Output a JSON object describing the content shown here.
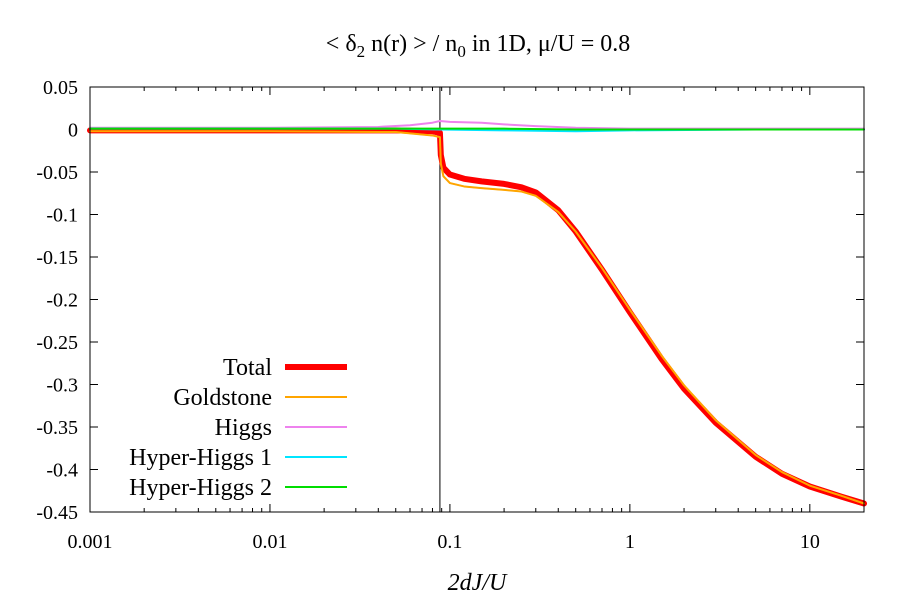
{
  "chart_data": {
    "type": "line",
    "title": {
      "prefix": "< ",
      "delta": "δ",
      "delta_sub": "2",
      "mid": " n(r) > / n",
      "n_sub": "0",
      "suffix": " in 1D, ",
      "mu": "μ",
      "ratio": "/U = 0.8"
    },
    "xlabel": "2dJ/U",
    "ylabel": "",
    "xscale": "log",
    "xlim": [
      0.001,
      20
    ],
    "ylim": [
      -0.45,
      0.05
    ],
    "xticks": [
      {
        "value": 0.001,
        "label": "0.001"
      },
      {
        "value": 0.01,
        "label": "0.01"
      },
      {
        "value": 0.1,
        "label": "0.1"
      },
      {
        "value": 1,
        "label": "1"
      },
      {
        "value": 10,
        "label": "10"
      }
    ],
    "yticks": [
      {
        "value": 0.05,
        "label": "0.05"
      },
      {
        "value": 0,
        "label": "0"
      },
      {
        "value": -0.05,
        "label": "-0.05"
      },
      {
        "value": -0.1,
        "label": "-0.1"
      },
      {
        "value": -0.15,
        "label": "-0.15"
      },
      {
        "value": -0.2,
        "label": "-0.2"
      },
      {
        "value": -0.25,
        "label": "-0.25"
      },
      {
        "value": -0.3,
        "label": "-0.3"
      },
      {
        "value": -0.35,
        "label": "-0.35"
      },
      {
        "value": -0.4,
        "label": "-0.4"
      },
      {
        "value": -0.45,
        "label": "-0.45"
      }
    ],
    "vline_x": 0.088,
    "legend_position": "bottom-left",
    "series": [
      {
        "name": "Total",
        "color": "#ff0000",
        "width": 6,
        "x": [
          0.001,
          0.01,
          0.05,
          0.08,
          0.088,
          0.089,
          0.092,
          0.1,
          0.12,
          0.15,
          0.2,
          0.25,
          0.3,
          0.4,
          0.5,
          0.7,
          1,
          1.5,
          2,
          3,
          5,
          7,
          10,
          15,
          20
        ],
        "y": [
          -0.001,
          -0.001,
          -0.001,
          -0.002,
          -0.004,
          -0.03,
          -0.045,
          -0.053,
          -0.058,
          -0.061,
          -0.064,
          -0.068,
          -0.074,
          -0.095,
          -0.12,
          -0.165,
          -0.215,
          -0.27,
          -0.305,
          -0.345,
          -0.385,
          -0.405,
          -0.42,
          -0.432,
          -0.44
        ]
      },
      {
        "name": "Goldstone",
        "color": "#ffa500",
        "width": 2,
        "x": [
          0.001,
          0.01,
          0.05,
          0.08,
          0.088,
          0.089,
          0.092,
          0.1,
          0.12,
          0.15,
          0.2,
          0.25,
          0.3,
          0.4,
          0.5,
          0.7,
          1,
          1.5,
          2,
          3,
          5,
          7,
          10,
          15,
          20
        ],
        "y": [
          -0.002,
          -0.002,
          -0.003,
          -0.007,
          -0.009,
          -0.04,
          -0.055,
          -0.063,
          -0.067,
          -0.069,
          -0.071,
          -0.073,
          -0.078,
          -0.097,
          -0.12,
          -0.163,
          -0.212,
          -0.266,
          -0.301,
          -0.342,
          -0.383,
          -0.403,
          -0.419,
          -0.431,
          -0.44
        ]
      },
      {
        "name": "Higgs",
        "color": "#ee82ee",
        "width": 2,
        "x": [
          0.001,
          0.01,
          0.04,
          0.06,
          0.08,
          0.088,
          0.1,
          0.15,
          0.2,
          0.3,
          0.5,
          1,
          2,
          5,
          10,
          20
        ],
        "y": [
          0.002,
          0.002,
          0.003,
          0.005,
          0.008,
          0.01,
          0.009,
          0.008,
          0.006,
          0.004,
          0.002,
          0.001,
          0.001,
          0.001,
          0.001,
          0.001
        ]
      },
      {
        "name": "Hyper-Higgs 1",
        "color": "#00e5ff",
        "width": 2,
        "x": [
          0.001,
          0.05,
          0.088,
          0.2,
          0.5,
          1,
          5,
          20
        ],
        "y": [
          0.001,
          0.001,
          0.0,
          -0.001,
          -0.002,
          -0.001,
          0.0,
          0.0
        ]
      },
      {
        "name": "Hyper-Higgs 2",
        "color": "#00dd00",
        "width": 2,
        "x": [
          0.001,
          0.05,
          0.088,
          0.2,
          0.5,
          1,
          5,
          20
        ],
        "y": [
          0.001,
          0.001,
          0.001,
          0.001,
          0.0,
          0.0,
          0.0,
          0.0
        ]
      }
    ]
  }
}
